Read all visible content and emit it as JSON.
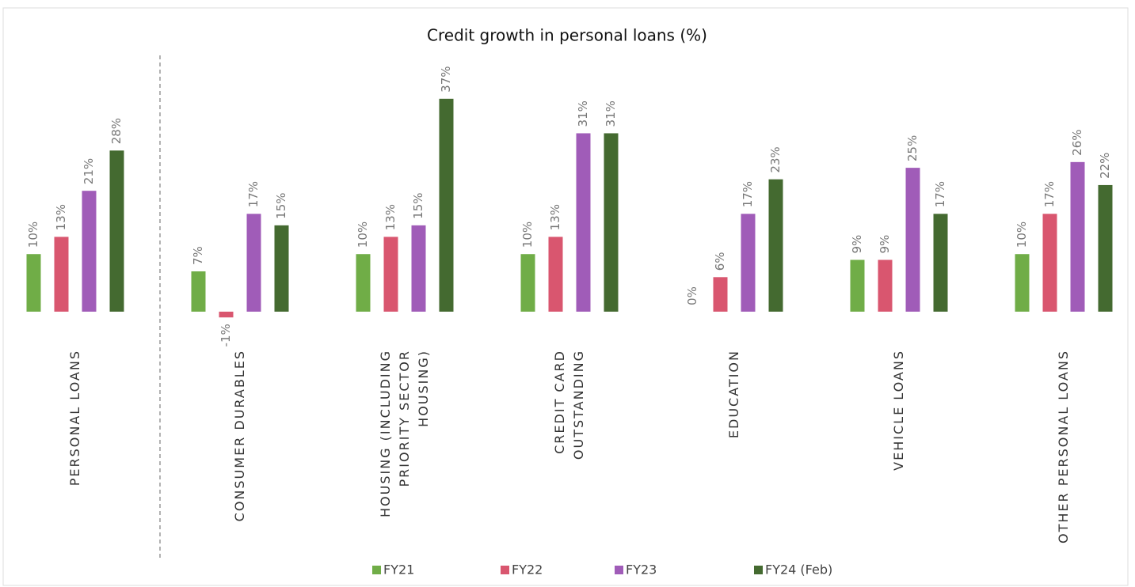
{
  "chart_data": {
    "type": "bar",
    "title": "Credit growth in personal loans (%)",
    "categories": [
      "PERSONAL LOANS",
      "CONSUMER DURABLES",
      "HOUSING (INCLUDING PRIORITY SECTOR HOUSING)",
      "CREDIT CARD OUTSTANDING",
      "EDUCATION",
      "VEHICLE LOANS",
      "OTHER PERSONAL LOANS"
    ],
    "series": [
      {
        "name": "FY21",
        "color": "#70ad47",
        "values": [
          10,
          7,
          10,
          10,
          0,
          9,
          10
        ],
        "value_labels": [
          "10%",
          "7%",
          "10%",
          "10%",
          "0%",
          "9%",
          "10%"
        ]
      },
      {
        "name": "FY22",
        "color": "#d9566f",
        "values": [
          13,
          -1,
          13,
          13,
          6,
          9,
          17
        ],
        "value_labels": [
          "13%",
          "-1%",
          "13%",
          "13%",
          "6%",
          "9%",
          "17%"
        ]
      },
      {
        "name": "FY23",
        "color": "#a05cb8",
        "values": [
          21,
          17,
          15,
          31,
          17,
          25,
          26
        ],
        "value_labels": [
          "21%",
          "17%",
          "15%",
          "31%",
          "17%",
          "25%",
          "26%"
        ]
      },
      {
        "name": "FY24 (Feb)",
        "color": "#446a30",
        "values": [
          28,
          15,
          37,
          31,
          23,
          17,
          22
        ],
        "value_labels": [
          "28%",
          "15%",
          "37%",
          "31%",
          "23%",
          "17%",
          "22%"
        ]
      }
    ],
    "ylim": [
      -2,
      40
    ],
    "legend": "bottom"
  }
}
